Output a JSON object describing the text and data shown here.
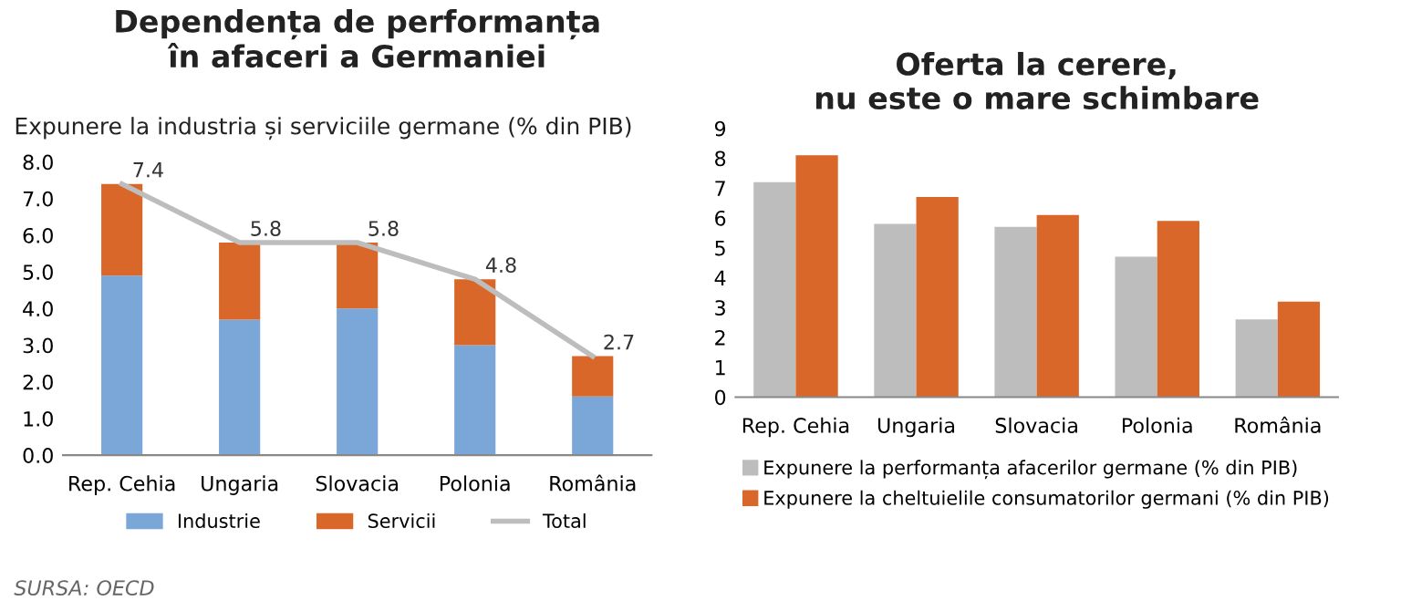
{
  "chart_data": [
    {
      "type": "bar",
      "title": "Dependența de performanța\nîn afaceri a Germaniei",
      "subtitle": "Expunere la industria și serviciile germane (% din PIB)",
      "categories": [
        "Rep. Cehia",
        "Ungaria",
        "Slovacia",
        "Polonia",
        "România"
      ],
      "stacked": true,
      "series": [
        {
          "name": "Industrie",
          "color": "#7aa6d8",
          "values": [
            4.9,
            3.7,
            4.0,
            3.0,
            1.6
          ]
        },
        {
          "name": "Servicii",
          "color": "#d9672a",
          "values": [
            2.5,
            2.1,
            1.8,
            1.8,
            1.1
          ]
        },
        {
          "name": "Total",
          "type": "line",
          "color": "#bdbdbd",
          "values": [
            7.4,
            5.8,
            5.8,
            4.8,
            2.7
          ],
          "data_labels": true
        }
      ],
      "ylim": [
        0,
        8
      ],
      "yticks": [
        {
          "value": 0,
          "label": "0.0"
        },
        {
          "value": 1,
          "label": "1.0"
        },
        {
          "value": 2,
          "label": "2.0"
        },
        {
          "value": 3,
          "label": "3.0"
        },
        {
          "value": 4,
          "label": "4.0"
        },
        {
          "value": 5,
          "label": "5.0"
        },
        {
          "value": 6,
          "label": "6.0"
        },
        {
          "value": 7,
          "label": "7.0"
        },
        {
          "value": 8,
          "label": "8.0"
        }
      ],
      "legend": "bottom",
      "grid": false,
      "annotations": [
        "SURSA: OECD"
      ]
    },
    {
      "type": "bar",
      "title": "Oferta la cerere,\nnu este o mare schimbare",
      "categories": [
        "Rep. Cehia",
        "Ungaria",
        "Slovacia",
        "Polonia",
        "România"
      ],
      "series": [
        {
          "name": "Expunere la performanța afacerilor germane (% din PIB)",
          "color": "#bdbdbd",
          "values": [
            7.2,
            5.8,
            5.7,
            4.7,
            2.6
          ]
        },
        {
          "name": "Expunere la cheltuielile consumatorilor germani (% din PIB)",
          "color": "#d9672a",
          "values": [
            8.1,
            6.7,
            6.1,
            5.9,
            3.2
          ]
        }
      ],
      "ylim": [
        0,
        9
      ],
      "yticks": [
        0,
        1,
        2,
        3,
        4,
        5,
        6,
        7,
        8,
        9
      ],
      "legend": "bottom",
      "grid": false
    }
  ]
}
